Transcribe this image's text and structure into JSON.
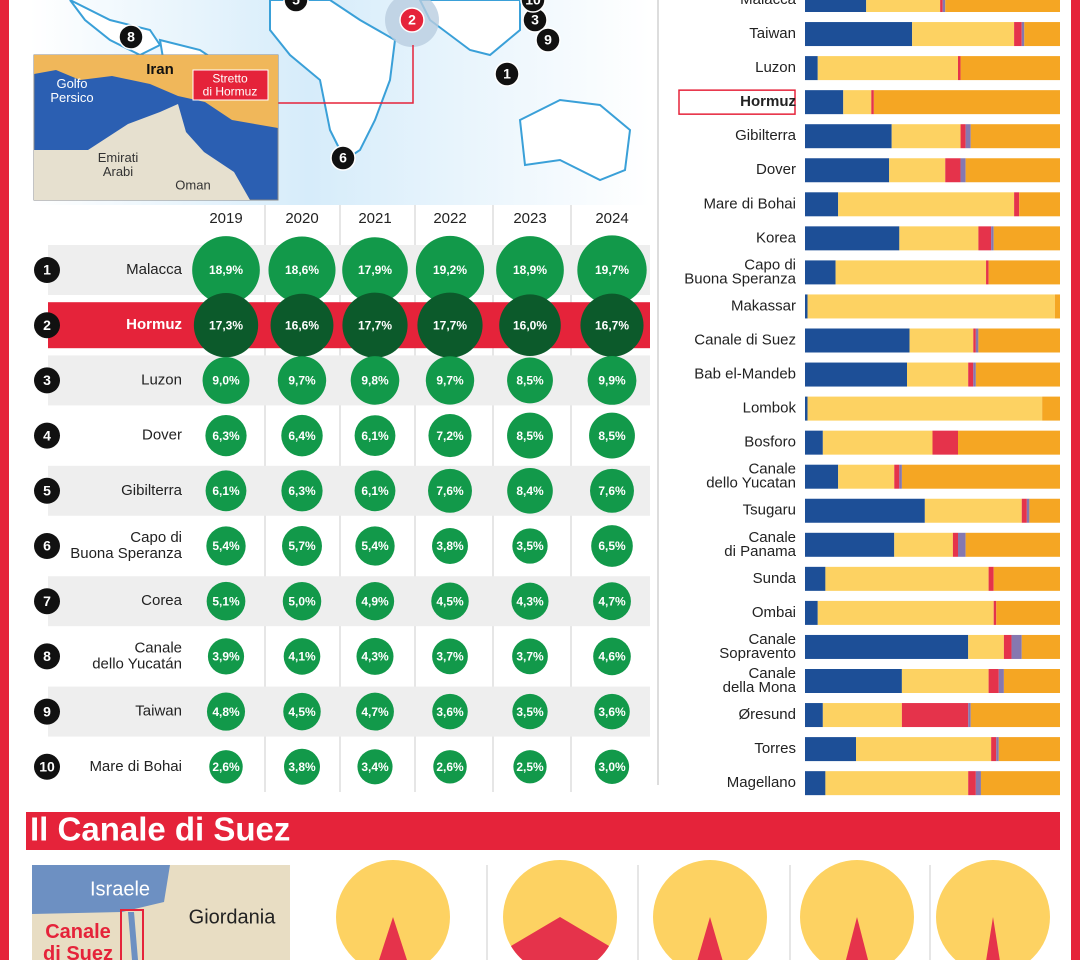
{
  "map": {
    "markers": [
      {
        "label": "8"
      },
      {
        "label": "5"
      },
      {
        "label": "2"
      },
      {
        "label": "3"
      },
      {
        "label": "10"
      },
      {
        "label": "9"
      },
      {
        "label": "1"
      },
      {
        "label": "6"
      }
    ],
    "inset_labels": [
      "Iran",
      "Golfo\nPersico",
      "Emirati\nArabi",
      "Oman"
    ],
    "callout": "Stretto\ndi Hormuz"
  },
  "chart_data": [
    {
      "type": "bubble-table",
      "categories": [
        "2019",
        "2020",
        "2021",
        "2022",
        "2023",
        "2024"
      ],
      "color": "#12994a",
      "highlight": 1,
      "highlight_color": "#0c5a2b",
      "series": [
        {
          "rank": 1,
          "name": "Malacca",
          "values": [
            18.9,
            18.6,
            17.9,
            19.2,
            18.9,
            19.7
          ],
          "value_labels": [
            "18,9%",
            "18,6%",
            "17,9%",
            "19,2%",
            "18,9%",
            "19,7%"
          ]
        },
        {
          "rank": 2,
          "name": "Hormuz",
          "values": [
            17.3,
            16.6,
            17.7,
            17.7,
            16.0,
            16.7
          ],
          "value_labels": [
            "17,3%",
            "16,6%",
            "17,7%",
            "17,7%",
            "16,0%",
            "16,7%"
          ]
        },
        {
          "rank": 3,
          "name": "Luzon",
          "values": [
            9.0,
            9.7,
            9.8,
            9.7,
            8.5,
            9.9
          ],
          "value_labels": [
            "9,0%",
            "9,7%",
            "9,8%",
            "9,7%",
            "8,5%",
            "9,9%"
          ]
        },
        {
          "rank": 4,
          "name": "Dover",
          "values": [
            6.3,
            6.4,
            6.1,
            7.2,
            8.5,
            8.5
          ],
          "value_labels": [
            "6,3%",
            "6,4%",
            "6,1%",
            "7,2%",
            "8,5%",
            "8,5%"
          ]
        },
        {
          "rank": 5,
          "name": "Gibilterra",
          "values": [
            6.1,
            6.3,
            6.1,
            7.6,
            8.4,
            7.6
          ],
          "value_labels": [
            "6,1%",
            "6,3%",
            "6,1%",
            "7,6%",
            "8,4%",
            "7,6%"
          ]
        },
        {
          "rank": 6,
          "name": "Capo di\nBuona Speranza",
          "values": [
            5.4,
            5.7,
            5.4,
            3.8,
            3.5,
            6.5
          ],
          "value_labels": [
            "5,4%",
            "5,7%",
            "5,4%",
            "3,8%",
            "3,5%",
            "6,5%"
          ]
        },
        {
          "rank": 7,
          "name": "Corea",
          "values": [
            5.1,
            5.0,
            4.9,
            4.5,
            4.3,
            4.7
          ],
          "value_labels": [
            "5,1%",
            "5,0%",
            "4,9%",
            "4,5%",
            "4,3%",
            "4,7%"
          ]
        },
        {
          "rank": 8,
          "name": "Canale\ndello Yucatán",
          "values": [
            3.9,
            4.1,
            4.3,
            3.7,
            3.7,
            4.6
          ],
          "value_labels": [
            "3,9%",
            "4,1%",
            "4,3%",
            "3,7%",
            "3,7%",
            "4,6%"
          ]
        },
        {
          "rank": 9,
          "name": "Taiwan",
          "values": [
            4.8,
            4.5,
            4.7,
            3.6,
            3.5,
            3.6
          ],
          "value_labels": [
            "4,8%",
            "4,5%",
            "4,7%",
            "3,6%",
            "3,5%",
            "3,6%"
          ]
        },
        {
          "rank": 10,
          "name": "Mare di Bohai",
          "values": [
            2.6,
            3.8,
            3.4,
            2.6,
            2.5,
            3.0
          ],
          "value_labels": [
            "2,6%",
            "3,8%",
            "3,4%",
            "2,6%",
            "2,5%",
            "3,0%"
          ]
        }
      ]
    },
    {
      "type": "stacked-bar",
      "categories": [
        "Malacca",
        "Taiwan",
        "Luzon",
        "Hormuz",
        "Gibilterra",
        "Dover",
        "Mare di Bohai",
        "Korea",
        "Capo di\nBuona Speranza",
        "Makassar",
        "Canale di Suez",
        "Bab el-Mandeb",
        "Lombok",
        "Bosforo",
        "Canale\ndello Yucatan",
        "Tsugaru",
        "Canale\ndi Panama",
        "Sunda",
        "Ombai",
        "Canale\nSopravento",
        "Canale\ndella Mona",
        "Øresund",
        "Torres",
        "Magellano"
      ],
      "xlim": [
        0,
        100
      ],
      "highlight": 3,
      "series": [
        {
          "color": "#1d4f97",
          "values": [
            24,
            42,
            5,
            15,
            34,
            33,
            13,
            37,
            12,
            1,
            41,
            40,
            1,
            7,
            13,
            47,
            35,
            8,
            5,
            64,
            38,
            7,
            20,
            8
          ]
        },
        {
          "color": "#fdd262",
          "values": [
            29,
            40,
            55,
            11,
            27,
            22,
            69,
            31,
            59,
            97,
            25,
            24,
            92,
            43,
            22,
            38,
            23,
            64,
            69,
            14,
            34,
            31,
            53,
            56
          ]
        },
        {
          "color": "#e5334b",
          "values": [
            1,
            3,
            1,
            1,
            2,
            6,
            2,
            5,
            1,
            0,
            1,
            2,
            0,
            10,
            2,
            2,
            2,
            2,
            1,
            3,
            4,
            26,
            2,
            3
          ]
        },
        {
          "color": "#8578b0",
          "values": [
            1,
            1,
            0,
            0,
            2,
            2,
            0,
            1,
            0,
            0,
            1,
            1,
            0,
            0,
            1,
            1,
            3,
            0,
            0,
            4,
            2,
            1,
            1,
            2
          ]
        },
        {
          "color": "#f5a623",
          "values": [
            45,
            14,
            39,
            73,
            35,
            37,
            16,
            26,
            28,
            2,
            32,
            33,
            7,
            40,
            62,
            12,
            37,
            26,
            25,
            15,
            22,
            35,
            24,
            31
          ]
        }
      ]
    },
    {
      "type": "pie",
      "title": "Il Canale di Suez",
      "values": [
        10,
        33,
        9,
        8,
        5
      ],
      "color": "#e5334b",
      "background_color": "#fdd262"
    }
  ],
  "suez_map": {
    "labels": [
      "Israele",
      "Giordania",
      "Canale\ndi Suez"
    ]
  }
}
